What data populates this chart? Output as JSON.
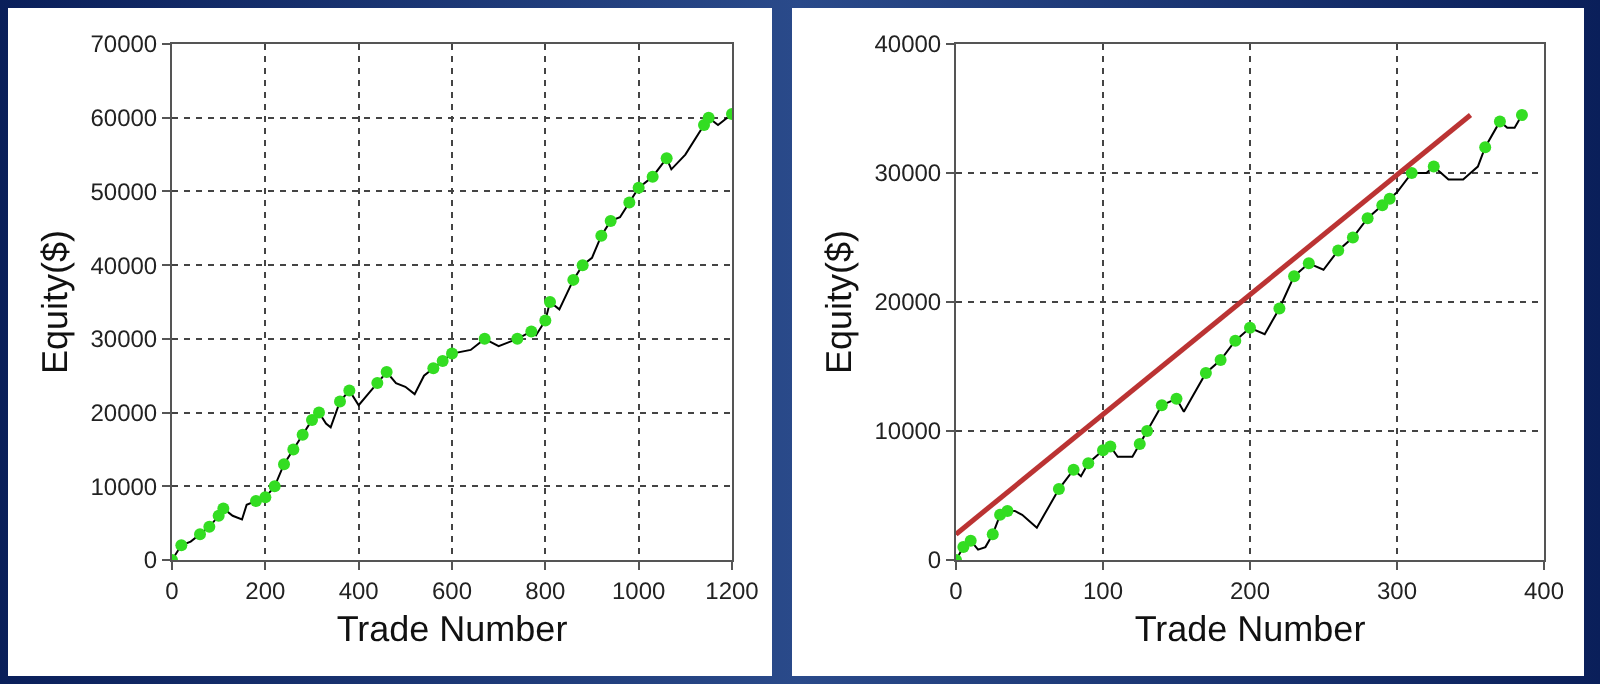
{
  "chart_data": [
    {
      "type": "line",
      "xlabel": "Trade Number",
      "ylabel": "Equity($)",
      "xlim": [
        0,
        1200
      ],
      "xticks": [
        0,
        200,
        400,
        600,
        800,
        1000,
        1200
      ],
      "ylim": [
        0,
        70000
      ],
      "yticks": [
        0,
        10000,
        20000,
        30000,
        40000,
        50000,
        60000,
        70000
      ],
      "grid": true,
      "series": [
        {
          "color": "#000000",
          "marker": "none",
          "x": [
            0,
            20,
            40,
            60,
            80,
            100,
            110,
            130,
            150,
            160,
            180,
            200,
            220,
            240,
            260,
            280,
            300,
            315,
            330,
            340,
            360,
            380,
            400,
            420,
            440,
            460,
            480,
            500,
            520,
            540,
            560,
            580,
            600,
            640,
            670,
            700,
            740,
            770,
            780,
            800,
            810,
            830,
            860,
            880,
            900,
            920,
            940,
            960,
            980,
            1000,
            1030,
            1060,
            1070,
            1100,
            1140,
            1150,
            1170,
            1200
          ],
          "values": [
            0,
            2000,
            2500,
            3500,
            4500,
            6000,
            7000,
            6000,
            5500,
            7500,
            8000,
            8500,
            10000,
            13000,
            15000,
            17000,
            19000,
            20000,
            18500,
            18000,
            21500,
            23000,
            21000,
            22500,
            24000,
            25500,
            24000,
            23500,
            22500,
            25000,
            26000,
            27000,
            28000,
            28500,
            30000,
            29000,
            30000,
            31000,
            30500,
            32500,
            35000,
            34000,
            38000,
            40000,
            41000,
            44000,
            46000,
            46500,
            48500,
            50500,
            52000,
            54500,
            53000,
            55000,
            59000,
            60000,
            59000,
            60500
          ]
        },
        {
          "type": "scatter",
          "color": "#33dd22",
          "marker": "circle",
          "x": [
            0,
            20,
            60,
            80,
            100,
            110,
            180,
            200,
            220,
            240,
            260,
            280,
            300,
            315,
            360,
            380,
            440,
            460,
            560,
            580,
            600,
            670,
            740,
            770,
            800,
            810,
            860,
            880,
            920,
            940,
            980,
            1000,
            1030,
            1060,
            1140,
            1150,
            1200
          ],
          "values": [
            0,
            2000,
            3500,
            4500,
            6000,
            7000,
            8000,
            8500,
            10000,
            13000,
            15000,
            17000,
            19000,
            20000,
            21500,
            23000,
            24000,
            25500,
            26000,
            27000,
            28000,
            30000,
            30000,
            31000,
            32500,
            35000,
            38000,
            40000,
            44000,
            46000,
            48500,
            50500,
            52000,
            54500,
            59000,
            60000,
            60500
          ]
        }
      ]
    },
    {
      "type": "line",
      "xlabel": "Trade Number",
      "ylabel": "Equity($)",
      "xlim": [
        0,
        400
      ],
      "xticks": [
        0,
        100,
        200,
        300,
        400
      ],
      "ylim": [
        0,
        40000
      ],
      "yticks": [
        0,
        10000,
        20000,
        30000,
        40000
      ],
      "grid": true,
      "series": [
        {
          "color": "#000000",
          "marker": "none",
          "x": [
            0,
            5,
            10,
            15,
            20,
            25,
            30,
            35,
            40,
            45,
            50,
            55,
            60,
            70,
            80,
            85,
            90,
            100,
            105,
            110,
            120,
            125,
            130,
            140,
            150,
            155,
            160,
            170,
            180,
            190,
            200,
            210,
            215,
            220,
            230,
            240,
            250,
            260,
            270,
            280,
            290,
            295,
            300,
            310,
            320,
            325,
            330,
            335,
            345,
            350,
            355,
            360,
            370,
            375,
            380,
            385
          ],
          "values": [
            0,
            1000,
            1500,
            800,
            1000,
            2000,
            3500,
            3800,
            3800,
            3500,
            3000,
            2500,
            3500,
            5500,
            7000,
            6500,
            7500,
            8500,
            8800,
            8000,
            8000,
            9000,
            10000,
            12000,
            12500,
            11500,
            12500,
            14500,
            15500,
            17000,
            18000,
            17500,
            18500,
            19500,
            22000,
            23000,
            22500,
            24000,
            25000,
            26500,
            27500,
            28000,
            28500,
            30000,
            30000,
            30500,
            30000,
            29500,
            29500,
            30000,
            30500,
            32000,
            34000,
            33500,
            33500,
            34500
          ]
        },
        {
          "type": "scatter",
          "color": "#33dd22",
          "marker": "circle",
          "x": [
            0,
            5,
            10,
            25,
            30,
            35,
            70,
            80,
            90,
            100,
            105,
            125,
            130,
            140,
            150,
            170,
            180,
            190,
            200,
            220,
            230,
            240,
            260,
            270,
            280,
            290,
            295,
            310,
            325,
            360,
            370,
            385
          ],
          "values": [
            0,
            1000,
            1500,
            2000,
            3500,
            3800,
            5500,
            7000,
            7500,
            8500,
            8800,
            9000,
            10000,
            12000,
            12500,
            14500,
            15500,
            17000,
            18000,
            19500,
            22000,
            23000,
            24000,
            25000,
            26500,
            27500,
            28000,
            30000,
            30500,
            32000,
            34000,
            34500
          ]
        },
        {
          "color": "#bb3333",
          "marker": "none",
          "x": [
            0,
            350
          ],
          "values": [
            2000,
            34500
          ]
        }
      ]
    }
  ]
}
